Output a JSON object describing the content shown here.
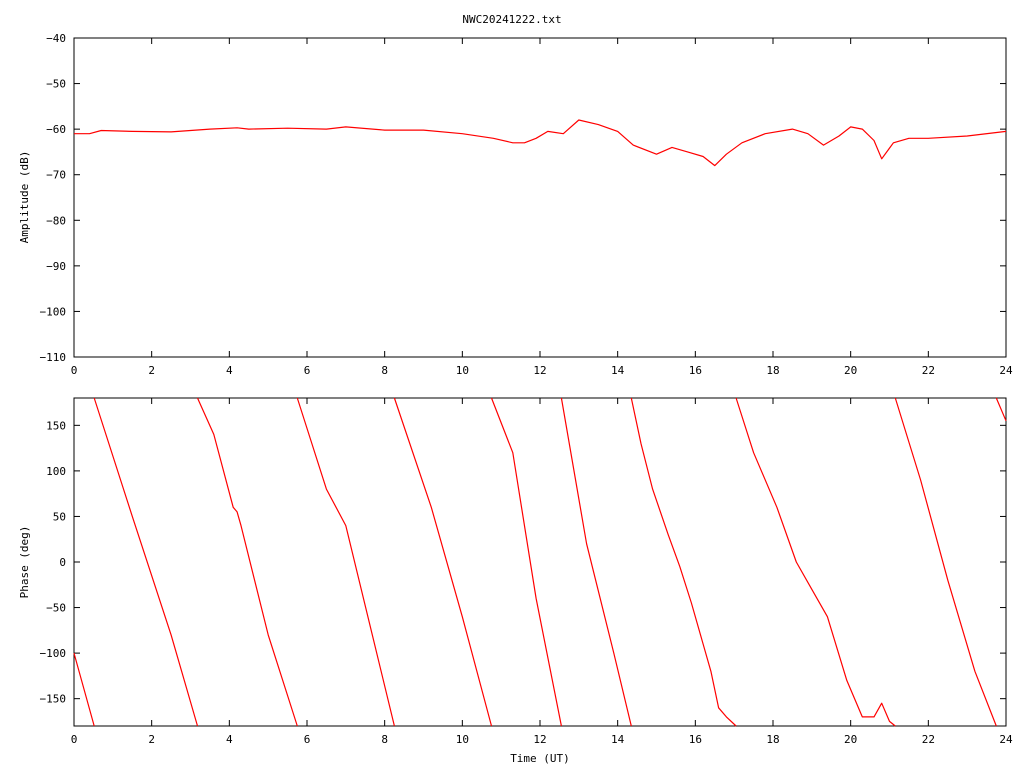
{
  "title": "NWC20241222.txt",
  "chart_data": [
    {
      "type": "line",
      "ylabel": "Amplitude (dB)",
      "xlabel": "",
      "xlim": [
        0,
        24
      ],
      "ylim": [
        -110,
        -40
      ],
      "xticks": [
        0,
        2,
        4,
        6,
        8,
        10,
        12,
        14,
        16,
        18,
        20,
        22,
        24
      ],
      "yticks": [
        -110,
        -100,
        -90,
        -80,
        -70,
        -60,
        -50,
        -40
      ],
      "grid": false,
      "series": [
        {
          "color": "#ff0000",
          "x": [
            0,
            0.4,
            0.7,
            1.5,
            2.5,
            3.5,
            4.2,
            4.5,
            5.5,
            6.5,
            7.0,
            8.0,
            9.0,
            10.0,
            10.8,
            11.3,
            11.6,
            11.9,
            12.2,
            12.6,
            13.0,
            13.5,
            14.0,
            14.4,
            15.0,
            15.4,
            15.8,
            16.2,
            16.5,
            16.8,
            17.2,
            17.8,
            18.5,
            18.9,
            19.3,
            19.7,
            20.0,
            20.3,
            20.6,
            20.8,
            21.1,
            21.5,
            22.0,
            23.0,
            24.0
          ],
          "values": [
            -61,
            -61,
            -60.3,
            -60.5,
            -60.6,
            -60,
            -59.7,
            -60,
            -59.8,
            -60,
            -59.5,
            -60.2,
            -60.2,
            -61,
            -62,
            -63,
            -63,
            -62,
            -60.5,
            -61,
            -58,
            -59,
            -60.5,
            -63.5,
            -65.5,
            -64,
            -65,
            -66,
            -68,
            -65.5,
            -63,
            -61,
            -60,
            -61,
            -63.5,
            -61.5,
            -59.5,
            -60,
            -62.5,
            -66.5,
            -63,
            -62,
            -62,
            -61.5,
            -60.5
          ]
        }
      ]
    },
    {
      "type": "line",
      "ylabel": "Phase (deg)",
      "xlabel": "Time (UT)",
      "xlim": [
        0,
        24
      ],
      "ylim": [
        -180,
        180
      ],
      "xticks": [
        0,
        2,
        4,
        6,
        8,
        10,
        12,
        14,
        16,
        18,
        20,
        22,
        24
      ],
      "yticks": [
        -150,
        -100,
        -50,
        0,
        50,
        100,
        150
      ],
      "grid": false,
      "series": [
        {
          "color": "#ff0000",
          "x": [
            0,
            0.52,
            0.52,
            0.52,
            1.5,
            2.5,
            3.18,
            3.18,
            3.18,
            3.6,
            4.1,
            4.2,
            4.3,
            5.0,
            5.75,
            5.75,
            5.75,
            6.5,
            7.0,
            8.25,
            8.25,
            8.25,
            9.2,
            10.0,
            10.75,
            10.75,
            10.75,
            11.3,
            11.9,
            12.55,
            12.55,
            12.55,
            13.2,
            13.9,
            14.35,
            14.35,
            14.35,
            14.6,
            14.9,
            15.3,
            15.6,
            15.9,
            16.2,
            16.4,
            16.6,
            16.8,
            17.05,
            17.05,
            17.05,
            17.5,
            18.1,
            18.6,
            19.0,
            19.4,
            19.9,
            20.3,
            20.6,
            20.8,
            21.0,
            21.15,
            21.15,
            21.15,
            21.8,
            22.5,
            23.2,
            23.75,
            23.75,
            23.75,
            24.0
          ],
          "values": [
            -100,
            -180,
            null,
            180,
            50,
            -80,
            -180,
            null,
            180,
            140,
            60,
            55,
            40,
            -80,
            -180,
            null,
            180,
            80,
            40,
            -180,
            null,
            180,
            60,
            -60,
            -180,
            null,
            180,
            120,
            -40,
            -180,
            null,
            180,
            20,
            -100,
            -180,
            null,
            180,
            130,
            80,
            30,
            -5,
            -45,
            -90,
            -120,
            -160,
            -170,
            -180,
            null,
            180,
            120,
            60,
            0,
            -30,
            -60,
            -130,
            -170,
            -170,
            -155,
            -175,
            -180,
            null,
            180,
            90,
            -20,
            -120,
            -180,
            null,
            180,
            155
          ]
        }
      ]
    }
  ]
}
